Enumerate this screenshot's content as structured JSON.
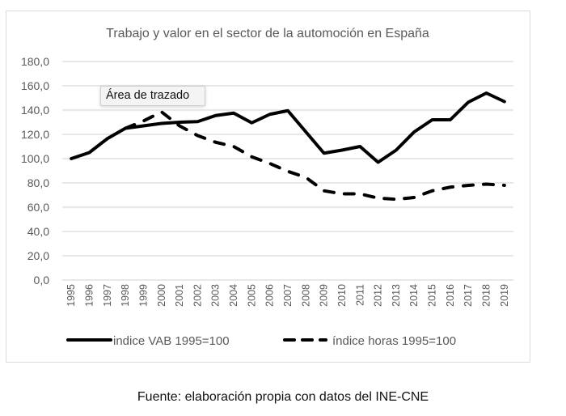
{
  "chart_data": {
    "type": "line",
    "title": "Trabajo y valor en el sector de la automoción en España",
    "xlabel": "",
    "ylabel": "",
    "ylim": [
      0,
      180
    ],
    "yticks": [
      "0,0",
      "20,0",
      "40,0",
      "60,0",
      "80,0",
      "100,0",
      "120,0",
      "140,0",
      "160,0",
      "180,0"
    ],
    "grid": true,
    "legend_position": "bottom",
    "categories": [
      "1995",
      "1996",
      "1997",
      "1998",
      "1999",
      "2000",
      "2001",
      "2002",
      "2003",
      "2004",
      "2005",
      "2006",
      "2007",
      "2008",
      "2009",
      "2010",
      "2011",
      "2012",
      "2013",
      "2014",
      "2015",
      "2016",
      "2017",
      "2018",
      "2019"
    ],
    "series": [
      {
        "name": "indice VAB 1995=100",
        "style": "solid",
        "color": "#000000",
        "values": [
          100,
          105,
          116.5,
          125,
          127,
          129,
          130,
          130.5,
          135.5,
          137.5,
          129.5,
          136.5,
          139.5,
          122,
          104.5,
          107,
          110,
          97,
          107,
          122,
          132,
          132,
          146.5,
          154,
          147
        ]
      },
      {
        "name": "índice horas 1995=100",
        "style": "dashed",
        "color": "#000000",
        "values": [
          null,
          null,
          null,
          125,
          131,
          138.5,
          127,
          119,
          113.5,
          110,
          101.5,
          96,
          89.5,
          84.5,
          73.5,
          71,
          71,
          67.5,
          66.5,
          68,
          73.5,
          76.5,
          78,
          79,
          78
        ]
      }
    ]
  },
  "tooltip": {
    "text": "Área de trazado"
  },
  "source_note": "Fuente: elaboración propia con datos del INE-CNE"
}
